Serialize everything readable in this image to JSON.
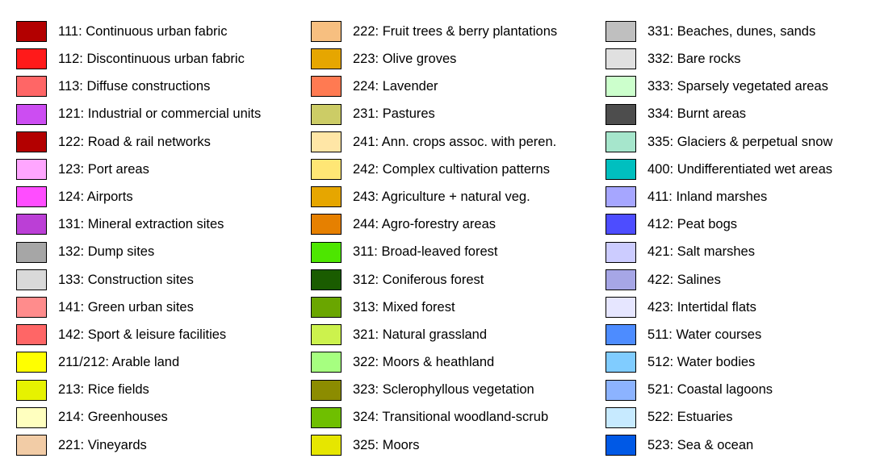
{
  "legend": {
    "columns": [
      [
        {
          "label": "111: Continuous urban fabric",
          "color": "#b30000"
        },
        {
          "label": "112: Discontinuous urban fabric",
          "color": "#ff1a1a"
        },
        {
          "label": "113: Diffuse constructions",
          "color": "#ff6666"
        },
        {
          "label": "121: Industrial or commercial units",
          "color": "#cc4df2"
        },
        {
          "label": "122: Road & rail networks",
          "color": "#b30000"
        },
        {
          "label": "123: Port areas",
          "color": "#ffa6ff"
        },
        {
          "label": "124: Airports",
          "color": "#ff4dff"
        },
        {
          "label": "131: Mineral extraction sites",
          "color": "#bb3fd6"
        },
        {
          "label": "132: Dump sites",
          "color": "#a6a6a6"
        },
        {
          "label": "133: Construction sites",
          "color": "#d9d9d9"
        },
        {
          "label": "141: Green urban sites",
          "color": "#ff8c8c"
        },
        {
          "label": "142: Sport & leisure facilities",
          "color": "#ff6666"
        },
        {
          "label": "211/212: Arable land",
          "color": "#ffff00"
        },
        {
          "label": "213: Rice fields",
          "color": "#e6f200"
        },
        {
          "label": "214: Greenhouses",
          "color": "#ffffbf"
        },
        {
          "label": "221: Vineyards",
          "color": "#f2cca6"
        }
      ],
      [
        {
          "label": "222: Fruit trees & berry plantations",
          "color": "#f7bf80"
        },
        {
          "label": "223: Olive groves",
          "color": "#e6a600"
        },
        {
          "label": "224: Lavender",
          "color": "#ff7a52"
        },
        {
          "label": "231: Pastures",
          "color": "#cccc66"
        },
        {
          "label": "241: Ann. crops assoc. with peren.",
          "color": "#ffe6a6"
        },
        {
          "label": "242: Complex cultivation patterns",
          "color": "#ffe675"
        },
        {
          "label": "243: Agriculture + natural veg.",
          "color": "#e6a600"
        },
        {
          "label": "244: Agro-forestry areas",
          "color": "#e68000"
        },
        {
          "label": "311: Broad-leaved forest",
          "color": "#4de600"
        },
        {
          "label": "312: Coniferous forest",
          "color": "#1a5c00"
        },
        {
          "label": "313: Mixed forest",
          "color": "#6aa600"
        },
        {
          "label": "321: Natural grassland",
          "color": "#ccf24d"
        },
        {
          "label": "322: Moors & heathland",
          "color": "#a6ff80"
        },
        {
          "label": "323: Sclerophyllous vegetation",
          "color": "#8c8c00"
        },
        {
          "label": "324: Transitional woodland-scrub",
          "color": "#6fbf00"
        },
        {
          "label": "325: Moors",
          "color": "#e6e600"
        }
      ],
      [
        {
          "label": "331: Beaches, dunes, sands",
          "color": "#bfbfbf"
        },
        {
          "label": "332: Bare rocks",
          "color": "#e0e0e0"
        },
        {
          "label": "333: Sparsely vegetated areas",
          "color": "#ccffcc"
        },
        {
          "label": "334: Burnt areas",
          "color": "#4d4d4d"
        },
        {
          "label": "335: Glaciers & perpetual snow",
          "color": "#a6e6cc"
        },
        {
          "label": "400: Undifferentiated wet areas",
          "color": "#00bfbf"
        },
        {
          "label": "411: Inland marshes",
          "color": "#a6a6ff"
        },
        {
          "label": "412: Peat bogs",
          "color": "#4d4dff"
        },
        {
          "label": "421: Salt marshes",
          "color": "#ccccff"
        },
        {
          "label": "422: Salines",
          "color": "#a6a6e6"
        },
        {
          "label": "423: Intertidal flats",
          "color": "#e6e6ff"
        },
        {
          "label": "511: Water courses",
          "color": "#4d8cff"
        },
        {
          "label": "512: Water bodies",
          "color": "#80ccff"
        },
        {
          "label": "521: Coastal lagoons",
          "color": "#8cb3ff"
        },
        {
          "label": "522: Estuaries",
          "color": "#c7eaff"
        },
        {
          "label": "523: Sea & ocean",
          "color": "#0059e6"
        }
      ]
    ]
  }
}
